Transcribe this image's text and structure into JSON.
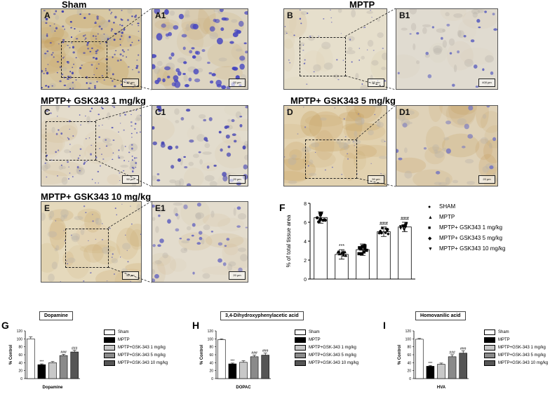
{
  "titles": {
    "sham": "Sham",
    "mptp": "MPTP",
    "gsk1": "MPTP+ GSK343 1 mg/kg",
    "gsk5": "MPTP+ GSK343 5 mg/kg",
    "gsk10": "MPTP+ GSK343 10 mg/kg"
  },
  "panels": {
    "A": "A",
    "A1": "A1",
    "B": "B",
    "B1": "B1",
    "C": "C",
    "C1": "C1",
    "D": "D",
    "D1": "D1",
    "E": "E",
    "E1": "E1"
  },
  "scalebars": {
    "A": "50 µm",
    "A1": "20 µm",
    "B": "50 µm",
    "B1": "400 µm",
    "C": "50 µm",
    "C1": "20 µm",
    "D": "50 µm",
    "D1": "20 µm",
    "E": "50 µm",
    "E1": "20 µm"
  },
  "colors": {
    "tissue_bg": "#e9e1cf",
    "brown_stain": "#c9a060",
    "blue_cell": "#4a4ab0"
  },
  "panelF": {
    "letter": "F",
    "legend": [
      {
        "marker": "circle",
        "label": "SHAM"
      },
      {
        "marker": "triangle",
        "label": "MPTP"
      },
      {
        "marker": "square",
        "label": "MPTP+ GSK343 1 mg/kg"
      },
      {
        "marker": "diamond",
        "label": "MPTP+ GSK343 5 mg/kg"
      },
      {
        "marker": "triangle-down",
        "label": "MPTP+ GSK343 10 mg/kg"
      }
    ]
  },
  "bottom": {
    "legend": [
      "Sham",
      "MPTP",
      "MPTP+GSK-343 1 mg/kg",
      "MPTP+GSK-343 5 mg/kg",
      "MPTP+GSK-343 10 mg/kg"
    ],
    "legend_colors": [
      "#ffffff",
      "#000000",
      "#c8c8c8",
      "#8a8a8a",
      "#555555"
    ]
  },
  "chart_data": [
    {
      "id": "F",
      "type": "bar",
      "categories": [
        "SHAM",
        "MPTP",
        "MPTP+ GSK343 1 mg/kg",
        "MPTP+ GSK343 5 mg/kg",
        "MPTP+ GSK343 10 mg/kg"
      ],
      "values": [
        6.5,
        2.6,
        3.1,
        5.0,
        5.5
      ],
      "errors": [
        0.6,
        0.5,
        0.6,
        0.5,
        0.5
      ],
      "annotations": [
        "",
        "***",
        "",
        "###",
        "###"
      ],
      "ylabel": "% of total tissue area",
      "ylim": [
        0,
        8
      ],
      "yticks": [
        0,
        2,
        4,
        6,
        8
      ]
    },
    {
      "id": "G",
      "type": "bar",
      "box_title": "Dopamine",
      "categories": [
        "Sham",
        "MPTP",
        "MPTP+GSK-343 1 mg/kg",
        "MPTP+GSK-343 5 mg/kg",
        "MPTP+GSK-343 10 mg/kg"
      ],
      "values": [
        100,
        35,
        40,
        58,
        67
      ],
      "errors": [
        5,
        2,
        3,
        3,
        4
      ],
      "annotations": [
        "",
        "***",
        "",
        "###",
        "###"
      ],
      "ylabel": "% Control",
      "xlabel": "Dopamine",
      "ylim": [
        0,
        120
      ],
      "yticks": [
        0,
        20,
        40,
        60,
        80,
        100,
        120
      ]
    },
    {
      "id": "H",
      "type": "bar",
      "box_title": "3,4-Dihydroxyphenylacetic acid",
      "categories": [
        "Sham",
        "MPTP",
        "MPTP+GSK-343 1 mg/kg",
        "MPTP+GSK-343 5 mg/kg",
        "MPTP+GSK-343 10 mg/kg"
      ],
      "values": [
        98,
        37,
        41,
        55,
        59
      ],
      "errors": [
        2,
        2,
        4,
        4,
        5
      ],
      "annotations": [
        "",
        "***",
        "",
        "###",
        "###"
      ],
      "ylabel": "% Control",
      "xlabel": "DOPAC",
      "ylim": [
        0,
        120
      ],
      "yticks": [
        0,
        20,
        40,
        60,
        80,
        100,
        120
      ]
    },
    {
      "id": "I",
      "type": "bar",
      "box_title": "Homovanilic acid",
      "categories": [
        "Sham",
        "MPTP",
        "MPTP+GSK-343 1 mg/kg",
        "MPTP+GSK-343 5 mg/kg",
        "MPTP+GSK-343 10 mg/kg"
      ],
      "values": [
        99,
        31,
        36,
        55,
        64
      ],
      "errors": [
        2,
        2,
        3,
        5,
        6
      ],
      "annotations": [
        "",
        "***",
        "",
        "###",
        "###"
      ],
      "ylabel": "% Control",
      "xlabel": "HVA",
      "ylim": [
        0,
        120
      ],
      "yticks": [
        0,
        20,
        40,
        60,
        80,
        100,
        120
      ]
    }
  ]
}
